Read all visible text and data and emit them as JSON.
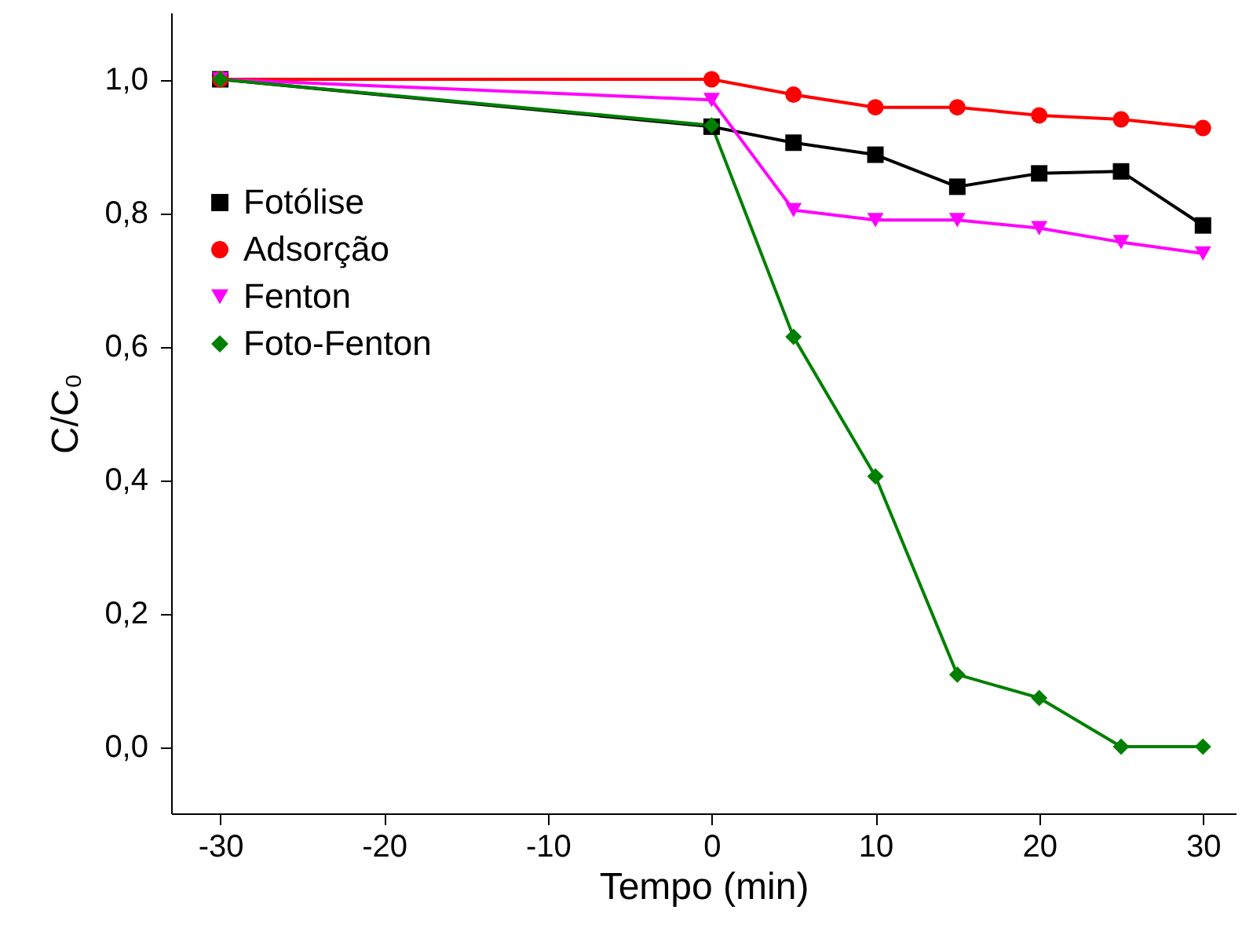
{
  "chart_data": {
    "type": "line",
    "xlabel": "Tempo (min)",
    "ylabel": "C/C₀",
    "x": [
      -30,
      0,
      5,
      10,
      15,
      20,
      25,
      30
    ],
    "series": [
      {
        "name": "Fotólise",
        "color": "#000000",
        "marker": "square",
        "values": [
          1.0,
          0.929,
          0.905,
          0.887,
          0.839,
          0.859,
          0.862,
          0.781
        ]
      },
      {
        "name": "Adsorção",
        "color": "#ff0000",
        "marker": "circle",
        "values": [
          1.0,
          1.0,
          0.977,
          0.958,
          0.958,
          0.946,
          0.94,
          0.927
        ]
      },
      {
        "name": "Fenton",
        "color": "#ff00ff",
        "marker": "triangle-down",
        "values": [
          1.0,
          0.969,
          0.804,
          0.789,
          0.789,
          0.777,
          0.756,
          0.739
        ]
      },
      {
        "name": "Foto-Fenton",
        "color": "#008000",
        "marker": "diamond",
        "values": [
          1.0,
          0.931,
          0.614,
          0.405,
          0.108,
          0.073,
          0.0,
          0.0
        ]
      }
    ],
    "xlim": [
      -33,
      32
    ],
    "xticks": [
      -30,
      -20,
      -10,
      0,
      10,
      20,
      30
    ],
    "ylim": [
      -0.1,
      1.1
    ],
    "yticks": [
      {
        "value": 0,
        "label": "0,0"
      },
      {
        "value": 0.2,
        "label": "0,2"
      },
      {
        "value": 0.4,
        "label": "0,4"
      },
      {
        "value": 0.6,
        "label": "0,6"
      },
      {
        "value": 0.8,
        "label": "0,8"
      },
      {
        "value": 1.0,
        "label": "1,0"
      }
    ],
    "legend": "top left",
    "grid": false,
    "line_style": "solid"
  }
}
